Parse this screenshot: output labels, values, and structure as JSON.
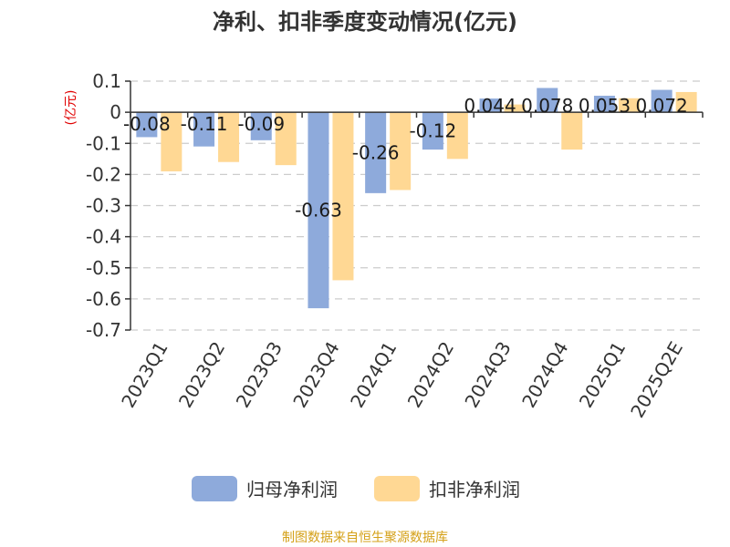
{
  "chart_data": {
    "type": "bar",
    "title": "净利、扣非季度变动情况(亿元)",
    "ylabel": "(亿元)",
    "xlabel": "",
    "ylim": [
      -0.7,
      0.1
    ],
    "yticks": [
      0.1,
      0,
      -0.1,
      -0.2,
      -0.3,
      -0.4,
      -0.5,
      -0.6,
      -0.7
    ],
    "ytick_labels": [
      "0.1",
      "0",
      "-0.1",
      "-0.2",
      "-0.3",
      "-0.4",
      "-0.5",
      "-0.6",
      "-0.7"
    ],
    "grid": true,
    "legend_position": "bottom-center",
    "categories": [
      "2023Q1",
      "2023Q2",
      "2023Q3",
      "2023Q4",
      "2024Q1",
      "2024Q2",
      "2024Q3",
      "2024Q4",
      "2025Q1",
      "2025Q2E"
    ],
    "series": [
      {
        "name": "归母净利润",
        "color": "#8eaadb",
        "values": [
          -0.08,
          -0.11,
          -0.09,
          -0.63,
          -0.26,
          -0.12,
          0.044,
          0.078,
          0.053,
          0.072
        ],
        "labels": [
          "-0.08",
          "-0.11",
          "-0.09",
          "-0.63",
          "-0.26",
          "-0.12",
          "0.044",
          "0.078",
          "0.053",
          "0.072"
        ]
      },
      {
        "name": "扣非净利润",
        "color": "#ffd894",
        "values": [
          -0.19,
          -0.16,
          -0.17,
          -0.54,
          -0.25,
          -0.15,
          0.025,
          -0.12,
          0.045,
          0.065
        ]
      }
    ]
  },
  "source": "制图数据来自恒生聚源数据库"
}
